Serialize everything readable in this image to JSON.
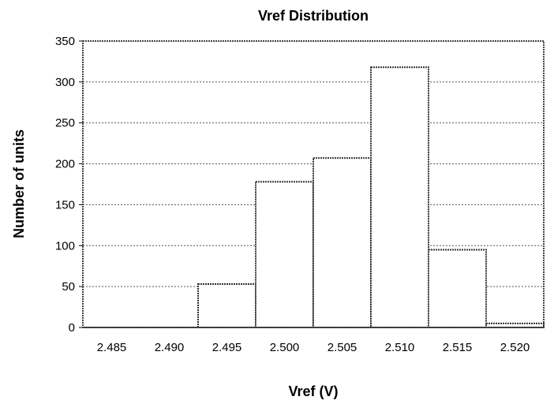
{
  "chart_data": {
    "type": "bar",
    "title": "Vref Distribution",
    "xlabel": "Vref (V)",
    "ylabel": "Number of units",
    "categories": [
      "2.485",
      "2.490",
      "2.495",
      "2.500",
      "2.505",
      "2.510",
      "2.515",
      "2.520"
    ],
    "values": [
      0,
      0,
      53,
      178,
      207,
      318,
      95,
      5
    ],
    "ylim": [
      0,
      350
    ],
    "yticks": [
      0,
      50,
      100,
      150,
      200,
      250,
      300,
      350
    ],
    "grid": true,
    "legend": "none"
  },
  "colors": {
    "bar_fill": "#ffffff",
    "bar_stroke": "#333333",
    "grid": "#555555"
  }
}
